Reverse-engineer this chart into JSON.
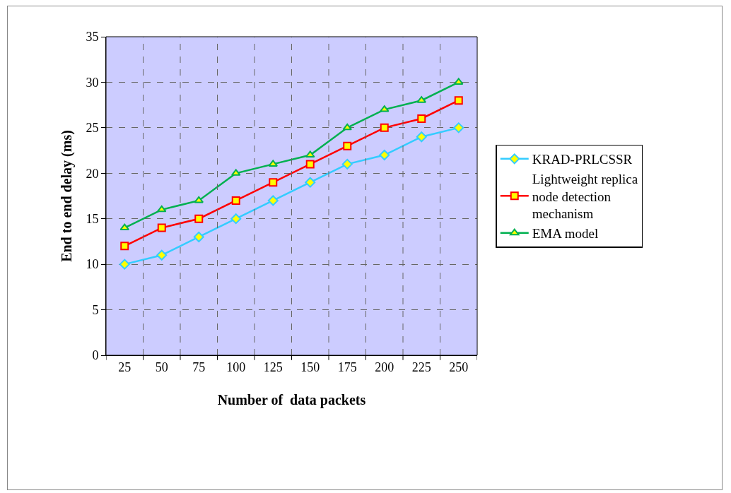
{
  "chart_data": {
    "type": "line",
    "xlabel": "Number of  data packets",
    "ylabel": "End to end delay (ms)",
    "categories": [
      "25",
      "50",
      "75",
      "100",
      "125",
      "150",
      "175",
      "200",
      "225",
      "250"
    ],
    "series": [
      {
        "name": "KRAD-PRLCSSR",
        "color": "#33ccff",
        "marker": "diamond",
        "values": [
          10,
          11,
          13,
          15,
          17,
          19,
          21,
          22,
          24,
          25
        ]
      },
      {
        "name": "Lightweight replica node detection mechanism",
        "color": "#ff0000",
        "marker": "square",
        "values": [
          12,
          14,
          15,
          17,
          19,
          21,
          23,
          25,
          26,
          28
        ]
      },
      {
        "name": "EMA model",
        "color": "#00b050",
        "marker": "triangle",
        "values": [
          14,
          16,
          17,
          20,
          21,
          22,
          25,
          27,
          28,
          30
        ]
      }
    ],
    "ylim": [
      0,
      35
    ],
    "yticks": [
      0,
      5,
      10,
      15,
      20,
      25,
      30,
      35
    ],
    "grid": true,
    "legend": "right",
    "line_style": "solid"
  }
}
